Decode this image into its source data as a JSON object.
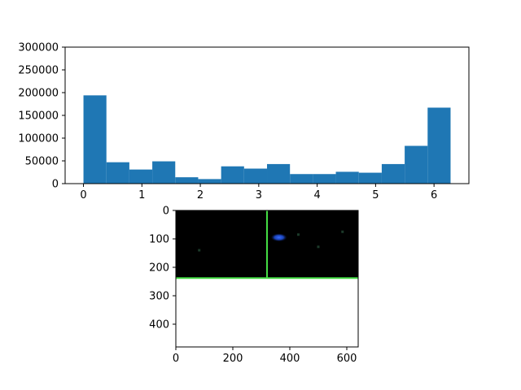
{
  "chart_data": [
    {
      "type": "bar",
      "subtype": "histogram",
      "title": "",
      "xlabel": "",
      "ylabel": "",
      "bin_edges": [
        0,
        0.3927,
        0.7854,
        1.1781,
        1.5708,
        1.9635,
        2.3562,
        2.7489,
        3.1416,
        3.5343,
        3.927,
        4.3197,
        4.7124,
        5.1051,
        5.4978,
        5.8905,
        6.2832
      ],
      "values": [
        194000,
        47000,
        31000,
        49000,
        14000,
        10000,
        38000,
        33000,
        43000,
        21000,
        21000,
        26000,
        24000,
        43000,
        83000,
        167000
      ],
      "color": "#1f77b4",
      "xlim": [
        -0.314,
        6.597
      ],
      "ylim": [
        0,
        300000
      ],
      "xticks": [
        0,
        1,
        2,
        3,
        4,
        5,
        6
      ],
      "xtick_labels": [
        "0",
        "1",
        "2",
        "3",
        "4",
        "5",
        "6"
      ],
      "yticks": [
        0,
        50000,
        100000,
        150000,
        200000,
        250000,
        300000
      ],
      "ytick_labels": [
        "0",
        "50000",
        "100000",
        "150000",
        "200000",
        "250000",
        "300000"
      ],
      "grid": false
    },
    {
      "type": "image",
      "title": "",
      "xlabel": "",
      "ylabel": "",
      "xlim": [
        0,
        640
      ],
      "ylim": [
        480,
        0
      ],
      "xticks": [
        0,
        200,
        400,
        600
      ],
      "xtick_labels": [
        "0",
        "200",
        "400",
        "600"
      ],
      "yticks": [
        0,
        100,
        200,
        300,
        400
      ],
      "ytick_labels": [
        "0",
        "100",
        "200",
        "300",
        "400"
      ],
      "image_extent_y": [
        0,
        240
      ],
      "background_color": "#000000",
      "green_vertical_line_x": 320,
      "green_horizontal_line_y": 238,
      "line_color": "#44dd44",
      "blob_center": [
        362,
        95
      ],
      "blob_color": "#2f5fff",
      "specks": [
        [
          82,
          140
        ],
        [
          500,
          128
        ],
        [
          585,
          75
        ],
        [
          430,
          85
        ]
      ],
      "grid": false
    }
  ]
}
